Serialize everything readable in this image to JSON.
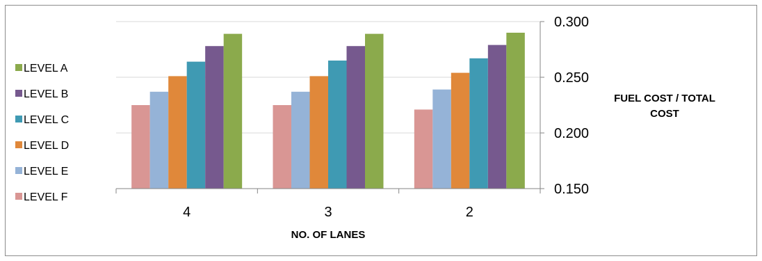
{
  "chart_data": {
    "type": "bar",
    "categories": [
      "4",
      "3",
      "2"
    ],
    "series": [
      {
        "name": "LEVEL F",
        "color": "#d99694",
        "values": [
          0.225,
          0.225,
          0.221
        ]
      },
      {
        "name": "LEVEL E",
        "color": "#95b3d7",
        "values": [
          0.237,
          0.237,
          0.239
        ]
      },
      {
        "name": "LEVEL D",
        "color": "#e0883a",
        "values": [
          0.251,
          0.251,
          0.254
        ]
      },
      {
        "name": "LEVEL C",
        "color": "#3f9ab3",
        "values": [
          0.264,
          0.265,
          0.267
        ]
      },
      {
        "name": "LEVEL B",
        "color": "#76598e",
        "values": [
          0.278,
          0.278,
          0.279
        ]
      },
      {
        "name": "LEVEL A",
        "color": "#8baa4c",
        "values": [
          0.289,
          0.289,
          0.29
        ]
      }
    ],
    "legend_order": [
      "LEVEL A",
      "LEVEL B",
      "LEVEL C",
      "LEVEL D",
      "LEVEL E",
      "LEVEL F"
    ],
    "xlabel": "NO. OF LANES",
    "ylabel_lines": [
      "FUEL COST / TOTAL",
      "COST"
    ],
    "ylim": [
      0.15,
      0.3
    ],
    "yticks": [
      "0.150",
      "0.200",
      "0.250",
      "0.300"
    ],
    "y_axis_side": "right",
    "grid": true,
    "legend_position": "left"
  }
}
